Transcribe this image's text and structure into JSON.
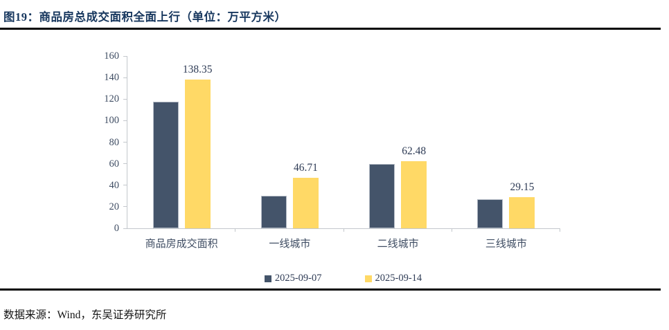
{
  "figure": {
    "title": "图19：商品房总成交面积全面上行（单位：万平方米）"
  },
  "footer": {
    "source": "数据来源：Wind，东吴证券研究所"
  },
  "chart_data": {
    "type": "bar",
    "title": "商品房总成交面积全面上行",
    "unit": "万平方米",
    "categories": [
      "商品房成交面积",
      "一线城市",
      "二线城市",
      "三线城市"
    ],
    "series": [
      {
        "name": "2025-09-07",
        "color": "#44546A",
        "show_labels": false,
        "values": [
          117.5,
          30,
          60,
          27
        ]
      },
      {
        "name": "2025-09-14",
        "color": "#FFD966",
        "show_labels": true,
        "values": [
          138.35,
          46.71,
          62.48,
          29.15
        ]
      }
    ],
    "ylim": [
      0,
      160
    ],
    "ystep": 20,
    "grid": false,
    "legend_position": "bottom",
    "colors": {
      "axis": "#C3C7CC",
      "tick_label": "#3F4D63",
      "data_label": "#2E3B55",
      "category_label": "#3F4D63",
      "title": "#17375E"
    }
  }
}
